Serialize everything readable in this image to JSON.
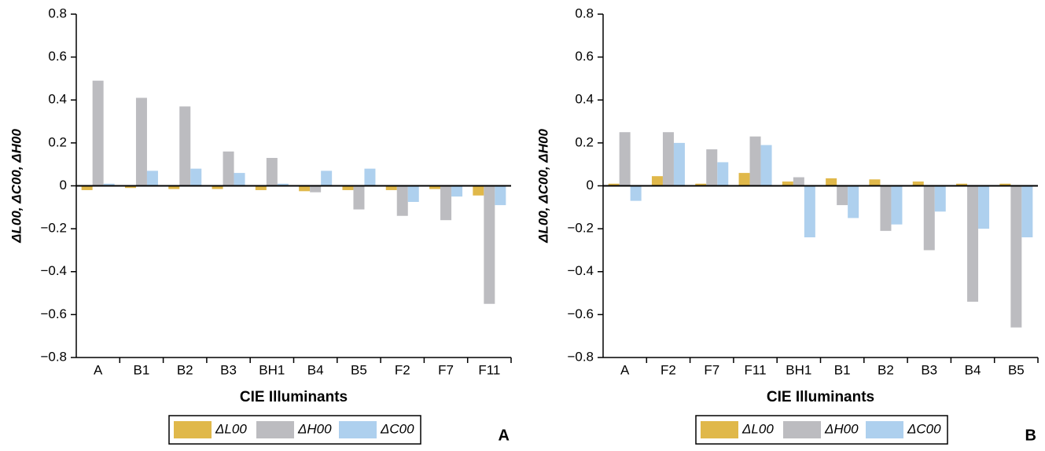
{
  "chart_data": [
    {
      "type": "bar",
      "panel_label": "A",
      "xlabel": "CIE Illuminants",
      "ylabel": "ΔL00, ΔC00, ΔH00",
      "categories": [
        "A",
        "B1",
        "B2",
        "B3",
        "BH1",
        "B4",
        "B5",
        "F2",
        "F7",
        "F11"
      ],
      "series": [
        {
          "name": "ΔL00",
          "color": "#e0b84a",
          "values": [
            -0.02,
            -0.01,
            -0.015,
            -0.015,
            -0.02,
            -0.025,
            -0.02,
            -0.02,
            -0.015,
            -0.045
          ]
        },
        {
          "name": "ΔH00",
          "color": "#bcbcc0",
          "values": [
            0.49,
            0.41,
            0.37,
            0.16,
            0.13,
            -0.03,
            -0.11,
            -0.14,
            -0.16,
            -0.55
          ]
        },
        {
          "name": "ΔC00",
          "color": "#aed0ee",
          "values": [
            0.01,
            0.07,
            0.08,
            0.06,
            0.01,
            0.07,
            0.08,
            -0.075,
            -0.05,
            -0.09
          ]
        }
      ],
      "ylim": [
        -0.8,
        0.8
      ],
      "yticks": [
        {
          "value": -0.8,
          "label": "−0.8"
        },
        {
          "value": -0.6,
          "label": "−0.6"
        },
        {
          "value": -0.4,
          "label": "−0.4"
        },
        {
          "value": -0.2,
          "label": "−0.2"
        },
        0,
        0.2,
        0.4,
        0.6,
        0.8
      ]
    },
    {
      "type": "bar",
      "panel_label": "B",
      "xlabel": "CIE Illuminants",
      "ylabel": "ΔL00, ΔC00, ΔH00",
      "categories": [
        "A",
        "F2",
        "F7",
        "F11",
        "BH1",
        "B1",
        "B2",
        "B3",
        "B4",
        "B5"
      ],
      "series": [
        {
          "name": "ΔL00",
          "color": "#e0b84a",
          "values": [
            0.01,
            0.045,
            0.01,
            0.06,
            0.02,
            0.035,
            0.03,
            0.02,
            0.01,
            0.01
          ]
        },
        {
          "name": "ΔH00",
          "color": "#bcbcc0",
          "values": [
            0.25,
            0.25,
            0.17,
            0.23,
            0.04,
            -0.09,
            -0.21,
            -0.3,
            -0.54,
            -0.66
          ]
        },
        {
          "name": "ΔC00",
          "color": "#aed0ee",
          "values": [
            -0.07,
            0.2,
            0.11,
            0.19,
            -0.24,
            -0.15,
            -0.18,
            -0.12,
            -0.2,
            -0.24
          ]
        }
      ],
      "ylim": [
        -0.8,
        0.8
      ],
      "yticks": [
        {
          "value": -0.8,
          "label": "−0.8"
        },
        {
          "value": -0.6,
          "label": "−0.6"
        },
        {
          "value": -0.4,
          "label": "−0.4"
        },
        {
          "value": -0.2,
          "label": "−0.2"
        },
        0,
        0.2,
        0.4,
        0.6,
        0.8
      ]
    }
  ]
}
